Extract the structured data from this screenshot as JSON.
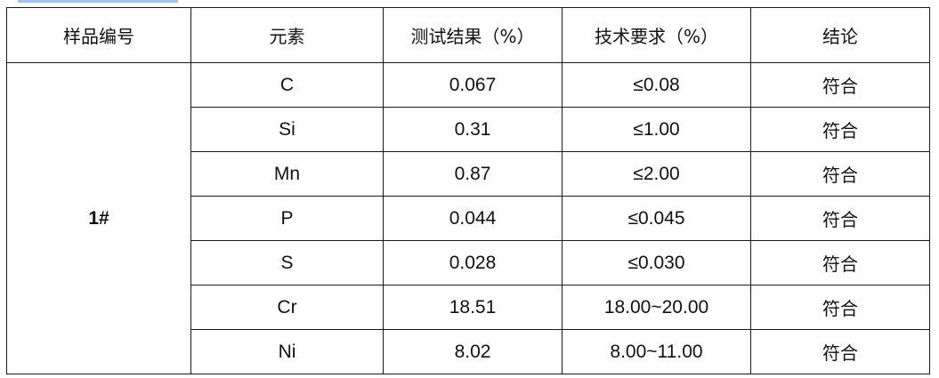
{
  "headers": [
    "样品编号",
    "元素",
    "测试结果（%）",
    "技术要求（%）",
    "结论"
  ],
  "sample_id": "1#",
  "rows": [
    {
      "element": "C",
      "result": "0.067",
      "requirement": "≤0.08",
      "conclusion": "符合"
    },
    {
      "element": "Si",
      "result": "0.31",
      "requirement": "≤1.00",
      "conclusion": "符合"
    },
    {
      "element": "Mn",
      "result": "0.87",
      "requirement": "≤2.00",
      "conclusion": "符合"
    },
    {
      "element": "P",
      "result": "0.044",
      "requirement": "≤0.045",
      "conclusion": "符合"
    },
    {
      "element": "S",
      "result": "0.028",
      "requirement": "≤0.030",
      "conclusion": "符合"
    },
    {
      "element": "Cr",
      "result": "18.51",
      "requirement": "18.00~20.00",
      "conclusion": "符合"
    },
    {
      "element": "Ni",
      "result": "8.02",
      "requirement": "8.00~11.00",
      "conclusion": "符合"
    }
  ]
}
